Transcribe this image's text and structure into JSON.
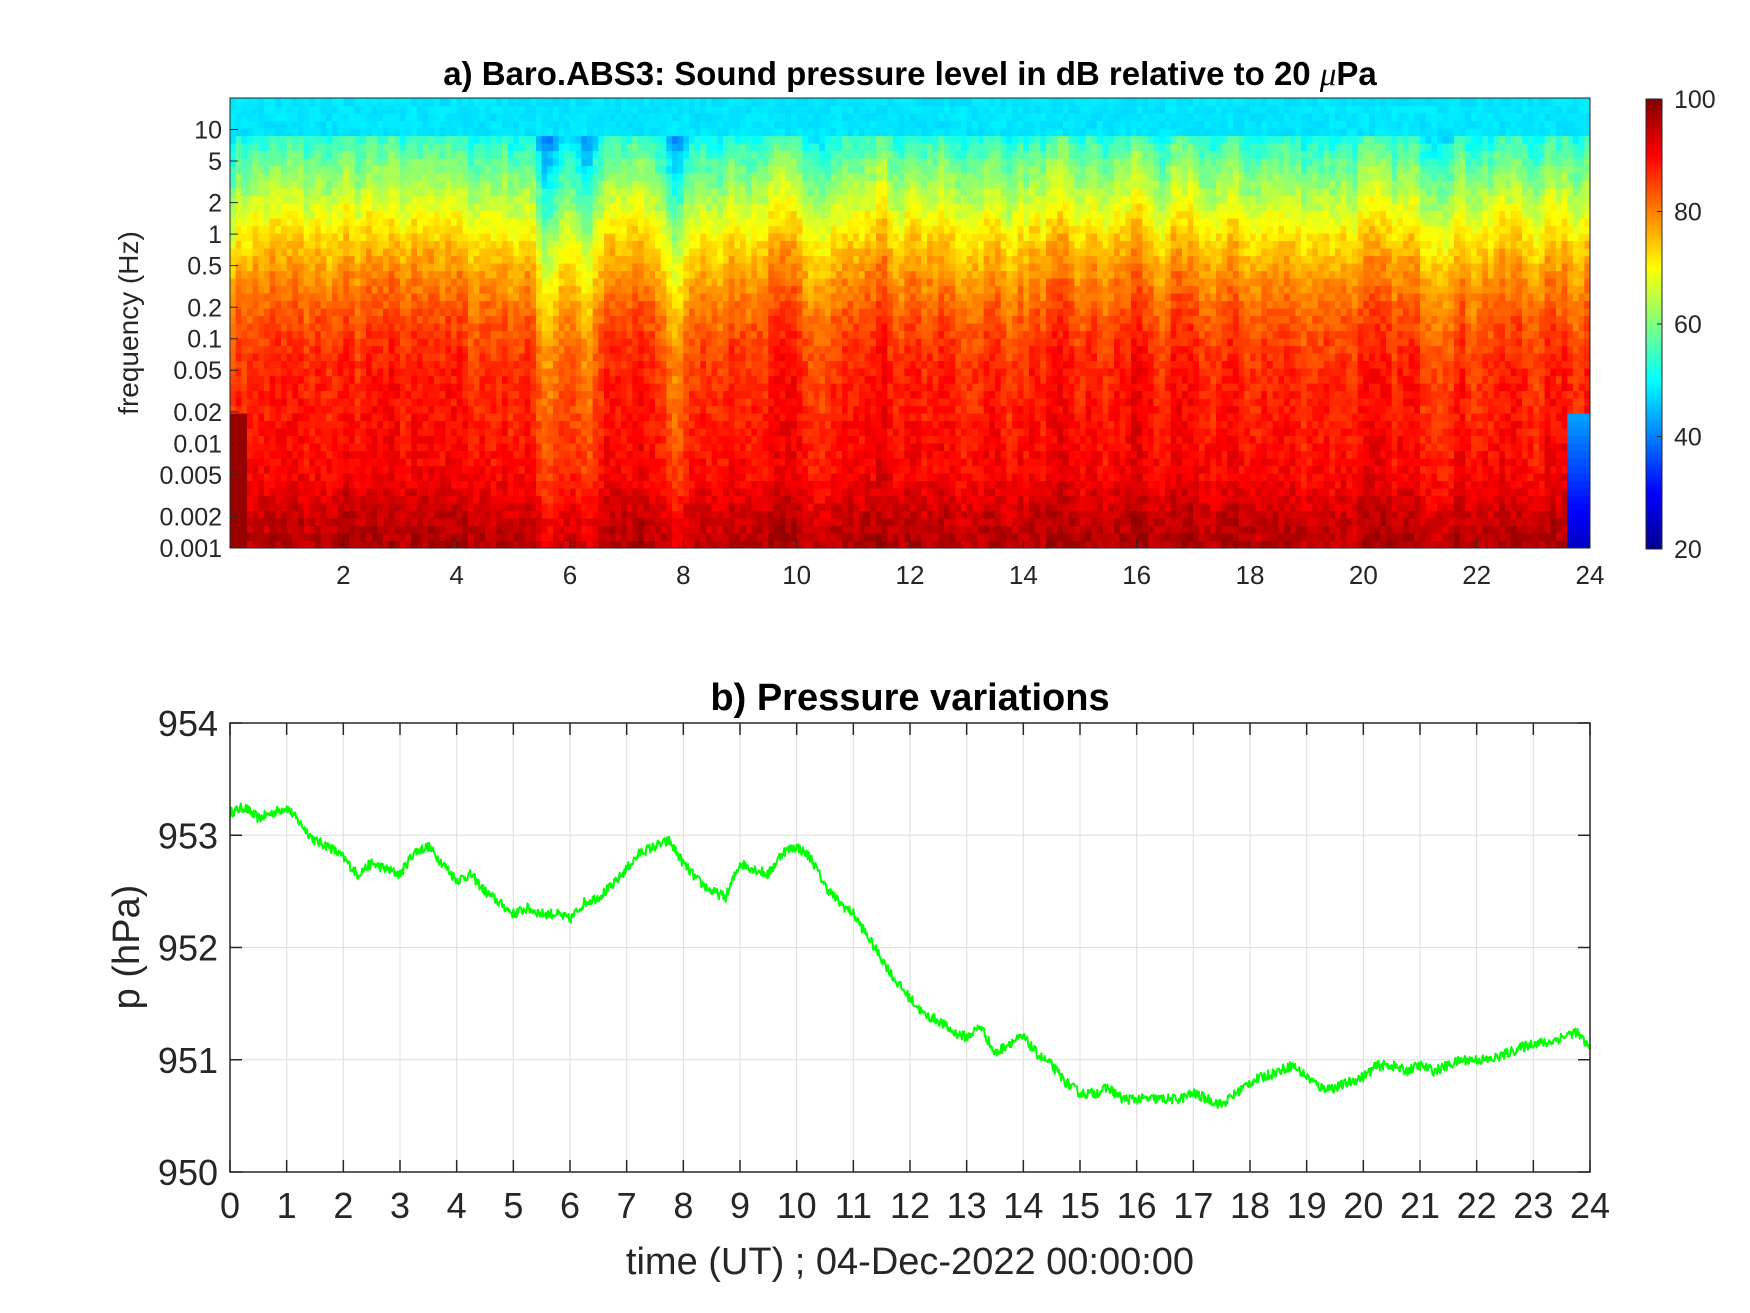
{
  "chart_data": [
    {
      "type": "heatmap",
      "title": "a) Baro.ABS3: Sound pressure level in dB relative to 20 μPa",
      "title_parts": [
        "a) Baro.ABS3: Sound pressure level in dB relative to 20 ",
        "μ",
        "Pa"
      ],
      "ylabel": "frequency (Hz)",
      "xlabel": "",
      "xlim": [
        0,
        24
      ],
      "ylim": [
        0.001,
        20
      ],
      "yscale": "log",
      "x_ticks": [
        2,
        4,
        6,
        8,
        10,
        12,
        14,
        16,
        18,
        20,
        22,
        24
      ],
      "x_tick_labels": [
        "2",
        "4",
        "6",
        "8",
        "10",
        "12",
        "14",
        "16",
        "18",
        "20",
        "22",
        "24"
      ],
      "y_ticks": [
        0.001,
        0.002,
        0.005,
        0.01,
        0.02,
        0.05,
        0.1,
        0.2,
        0.5,
        1,
        2,
        5,
        10
      ],
      "y_tick_labels": [
        "0.001",
        "0.002",
        "0.005",
        "0.01",
        "0.02",
        "0.05",
        "0.1",
        "0.2",
        "0.5",
        "1",
        "2",
        "5",
        "10"
      ],
      "colormap": "jet",
      "colorbar": {
        "range": [
          20,
          100
        ],
        "ticks": [
          20,
          40,
          60,
          80,
          100
        ],
        "tick_labels": [
          "20",
          "40",
          "60",
          "80",
          "100"
        ]
      },
      "level_profile": {
        "frequency_hz": [
          0.001,
          0.002,
          0.005,
          0.01,
          0.02,
          0.05,
          0.1,
          0.2,
          0.5,
          1,
          2,
          5,
          10,
          20
        ],
        "level_db": [
          96,
          94,
          90,
          89,
          88,
          87,
          85,
          82,
          77,
          72,
          66,
          58,
          51,
          48
        ]
      },
      "quiet_intervals_hours": [
        5.6,
        6.3,
        7.9
      ],
      "loud_intervals_hours": [
        3.5,
        11.5,
        16.0
      ],
      "grid": false
    },
    {
      "type": "line",
      "title": "b) Pressure variations",
      "xlabel": "time (UT) ; 04-Dec-2022 00:00:00",
      "ylabel": "p (hPa)",
      "xlim": [
        0,
        24
      ],
      "ylim": [
        950,
        954
      ],
      "x_ticks": [
        0,
        1,
        2,
        3,
        4,
        5,
        6,
        7,
        8,
        9,
        10,
        11,
        12,
        13,
        14,
        15,
        16,
        17,
        18,
        19,
        20,
        21,
        22,
        23,
        24
      ],
      "x_tick_labels": [
        "0",
        "1",
        "2",
        "3",
        "4",
        "5",
        "6",
        "7",
        "8",
        "9",
        "10",
        "11",
        "12",
        "13",
        "14",
        "15",
        "16",
        "17",
        "18",
        "19",
        "20",
        "21",
        "22",
        "23",
        "24"
      ],
      "y_ticks": [
        950,
        951,
        952,
        953,
        954
      ],
      "y_tick_labels": [
        "950",
        "951",
        "952",
        "953",
        "954"
      ],
      "grid": true,
      "series": [
        {
          "color": "#00ff00",
          "x": [
            0,
            0.25,
            0.5,
            0.75,
            1.0,
            1.25,
            1.5,
            1.75,
            2.0,
            2.25,
            2.5,
            2.75,
            3.0,
            3.25,
            3.5,
            3.75,
            4.0,
            4.25,
            4.5,
            4.75,
            5.0,
            5.25,
            5.5,
            5.75,
            6.0,
            6.25,
            6.5,
            6.75,
            7.0,
            7.25,
            7.5,
            7.75,
            8.0,
            8.25,
            8.5,
            8.75,
            9.0,
            9.25,
            9.5,
            9.75,
            10.0,
            10.25,
            10.5,
            10.75,
            11.0,
            11.25,
            11.5,
            11.75,
            12.0,
            12.25,
            12.5,
            12.75,
            13.0,
            13.25,
            13.5,
            13.75,
            14.0,
            14.25,
            14.5,
            14.75,
            15.0,
            15.25,
            15.5,
            15.75,
            16.0,
            16.25,
            16.5,
            16.75,
            17.0,
            17.25,
            17.5,
            17.75,
            18.0,
            18.25,
            18.5,
            18.75,
            19.0,
            19.25,
            19.5,
            19.75,
            20.0,
            20.25,
            20.5,
            20.75,
            21.0,
            21.25,
            21.5,
            21.75,
            22.0,
            22.25,
            22.5,
            22.75,
            23.0,
            23.25,
            23.5,
            23.75,
            24.0
          ],
          "y": [
            953.2,
            953.25,
            953.15,
            953.2,
            953.25,
            953.1,
            952.95,
            952.9,
            952.8,
            952.65,
            952.75,
            952.7,
            952.65,
            952.85,
            952.9,
            952.75,
            952.6,
            952.65,
            952.5,
            952.4,
            952.3,
            952.35,
            952.3,
            952.3,
            952.25,
            952.4,
            952.45,
            952.55,
            952.7,
            952.85,
            952.9,
            952.95,
            952.75,
            952.6,
            952.5,
            952.45,
            952.75,
            952.7,
            952.65,
            952.85,
            952.9,
            952.8,
            952.55,
            952.4,
            952.3,
            952.1,
            951.9,
            951.7,
            951.55,
            951.4,
            951.35,
            951.25,
            951.2,
            951.3,
            951.05,
            951.15,
            951.2,
            951.05,
            950.95,
            950.8,
            950.7,
            950.7,
            950.75,
            950.65,
            950.65,
            950.65,
            950.65,
            950.65,
            950.7,
            950.65,
            950.6,
            950.7,
            950.8,
            950.85,
            950.9,
            950.95,
            950.85,
            950.75,
            950.75,
            950.8,
            950.85,
            950.95,
            950.95,
            950.9,
            950.95,
            950.9,
            950.95,
            951.0,
            951.0,
            951.0,
            951.05,
            951.1,
            951.15,
            951.15,
            951.2,
            951.25,
            951.1
          ]
        }
      ]
    }
  ]
}
